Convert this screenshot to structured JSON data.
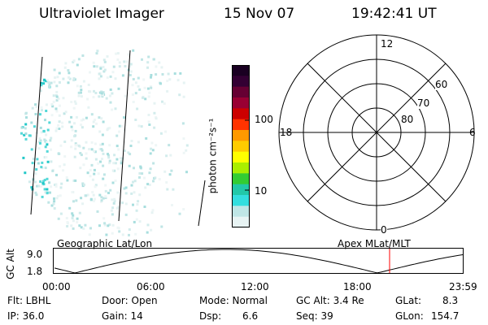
{
  "header": {
    "instrument": "Ultraviolet Imager",
    "date": "15 Nov 07",
    "time": "19:42:41 UT"
  },
  "colorbar": {
    "unit_label": "photon cm⁻²s⁻¹",
    "ticks": [
      "100",
      "10"
    ],
    "colors": [
      "#e8f4f4",
      "#bfe6e6",
      "#33dede",
      "#22c8a8",
      "#33cc33",
      "#aaee00",
      "#ffff00",
      "#ffcc00",
      "#ff9900",
      "#ff3300",
      "#cc0000",
      "#990033",
      "#660033",
      "#330033",
      "#1a0022"
    ]
  },
  "polar_plot": {
    "mlt_labels": {
      "top": "12",
      "left": "18",
      "right": "6",
      "bottom": "0"
    },
    "lat_labels": [
      "60",
      "70",
      "80"
    ]
  },
  "altitude_plot": {
    "ylabel": "GC Alt",
    "yticks": [
      "9.0",
      "1.8"
    ],
    "left_title": "Geographic Lat/Lon",
    "right_title": "Apex MLat/MLT",
    "xticks": [
      "00:00",
      "06:00",
      "12:00",
      "18:00",
      "23:59"
    ],
    "current_marker_color": "#ff0000"
  },
  "info": {
    "row1": {
      "flt": "Flt: LBHL",
      "door": "Door: Open",
      "mode": "Mode: Normal",
      "gc_alt": "GC Alt: 3.4 Re",
      "glat_label": "GLat:",
      "glat_value": "8.3"
    },
    "row2": {
      "ip": "IP: 36.0",
      "gain": "Gain: 14",
      "dsp_label": "Dsp:",
      "dsp_value": "6.6",
      "seq": "Seq: 39",
      "glon_label": "GLon:",
      "glon_value": "154.7"
    }
  }
}
